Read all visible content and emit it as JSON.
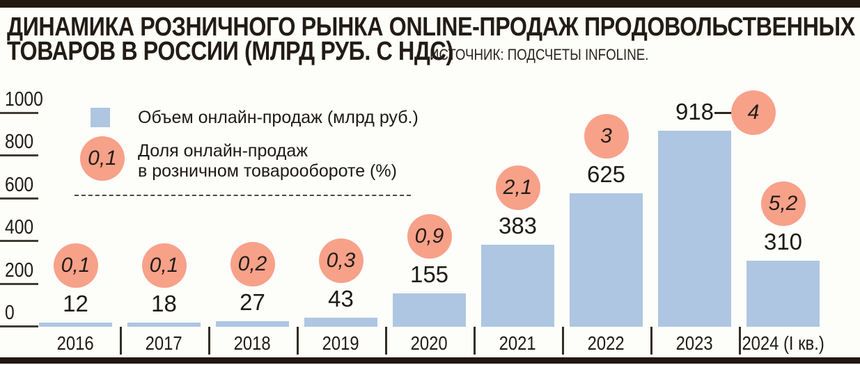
{
  "page": {
    "title_line1": "ДИНАМИКА РОЗНИЧНОГО РЫНКА ONLINE-ПРОДАЖ ПРОДОВОЛЬСТВЕННЫХ",
    "title_line2": "ТОВАРОВ В РОССИИ (МЛРД РУБ. С НДС)",
    "source": "ИСТОЧНИК: ПОДСЧЕТЫ INFOLINE."
  },
  "legend": {
    "bars_label": "Объем онлайн-продаж (млрд руб.)",
    "share_sample": "0,1",
    "share_label_line1": "Доля онлайн-продаж",
    "share_label_line2": "в розничном товарообороте (%)"
  },
  "chart_data": {
    "type": "bar",
    "title": "ДИНАМИКА РОЗНИЧНОГО РЫНКА ONLINE-ПРОДАЖ ПРОДОВОЛЬСТВЕННЫХ ТОВАРОВ В РОССИИ (МЛРД РУБ. С НДС)",
    "source": "ИСТОЧНИК: ПОДСЧЕТЫ INFOLINE.",
    "categories": [
      "2016",
      "2017",
      "2018",
      "2019",
      "2020",
      "2021",
      "2022",
      "2023",
      "2024 (I кв.)"
    ],
    "series": [
      {
        "name": "Объем онлайн-продаж (млрд руб.)",
        "type": "bar",
        "values": [
          12,
          18,
          27,
          43,
          155,
          383,
          625,
          918,
          310
        ],
        "labels": [
          "12",
          "18",
          "27",
          "43",
          "155",
          "383",
          "625",
          "918",
          "310"
        ]
      },
      {
        "name": "Доля онлайн-продаж в розничном товарообороте (%)",
        "type": "badge",
        "values": [
          0.1,
          0.1,
          0.2,
          0.3,
          0.9,
          2.1,
          3,
          4,
          5.2
        ],
        "labels": [
          "0,1",
          "0,1",
          "0,2",
          "0,3",
          "0,9",
          "2,1",
          "3",
          "4",
          "5,2"
        ]
      }
    ],
    "ylim": [
      0,
      1000
    ],
    "y_ticks": [
      0,
      200,
      400,
      600,
      800,
      1000
    ],
    "grid": false,
    "legend_position": "top-left",
    "callout_index": 7,
    "colors": {
      "bar": "#aec6e1",
      "badge": "#f7a189",
      "frame": "#221811",
      "text": "#1d1a16",
      "background": "#fdfdfa"
    }
  }
}
